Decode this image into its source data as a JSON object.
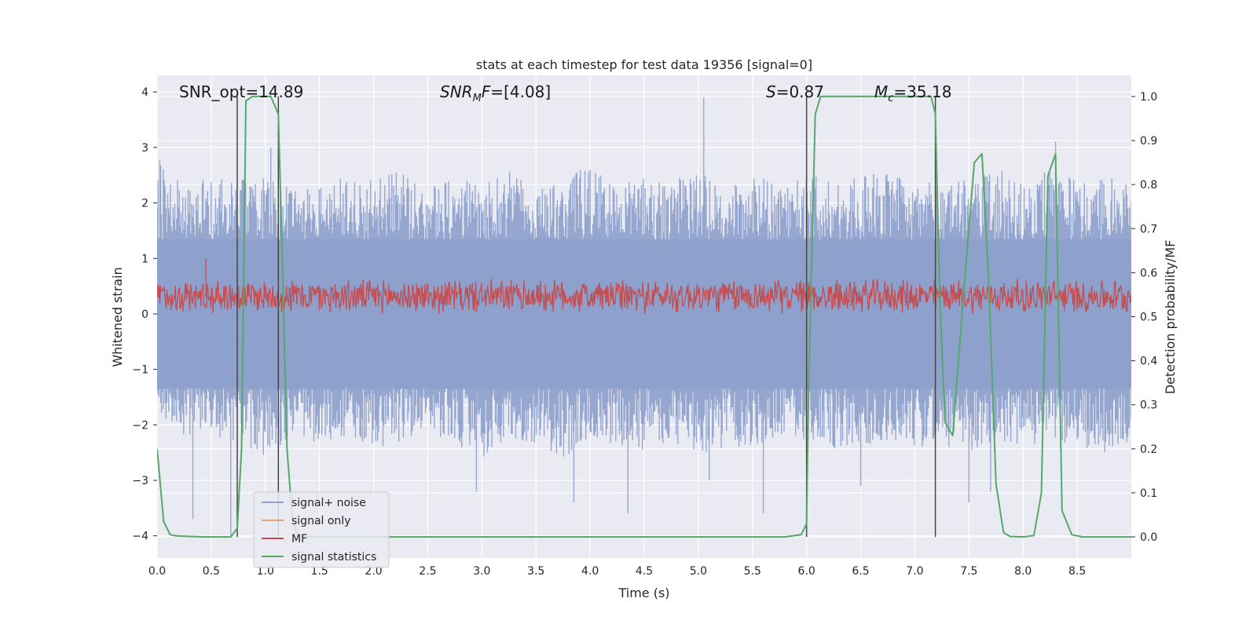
{
  "chart_data": {
    "type": "line",
    "title": "stats at each timestep for test data 19356 [signal=0]",
    "xlabel": "Time (s)",
    "ylabel": "Whitened strain",
    "y2label": "Detection probability/MF",
    "xlim": [
      0,
      9.0
    ],
    "ylim": [
      -4.4,
      4.3
    ],
    "y2lim": [
      -0.048,
      1.048
    ],
    "x_ticks": [
      "0.0",
      "0.5",
      "1.0",
      "1.5",
      "2.0",
      "2.5",
      "3.0",
      "3.5",
      "4.0",
      "4.5",
      "5.0",
      "5.5",
      "6.0",
      "6.5",
      "7.0",
      "7.5",
      "8.0",
      "8.5"
    ],
    "x_tick_values": [
      0,
      0.5,
      1,
      1.5,
      2,
      2.5,
      3,
      3.5,
      4,
      4.5,
      5,
      5.5,
      6,
      6.5,
      7,
      7.5,
      8,
      8.5
    ],
    "y_ticks": [
      "4",
      "3",
      "2",
      "1",
      "0",
      "−1",
      "−2",
      "−3",
      "−4"
    ],
    "y_tick_values": [
      4,
      3,
      2,
      1,
      0,
      -1,
      -2,
      -3,
      -4
    ],
    "y2_ticks": [
      "1.0",
      "0.9",
      "0.8",
      "0.7",
      "0.6",
      "0.5",
      "0.4",
      "0.3",
      "0.2",
      "0.1",
      "0.0"
    ],
    "y2_tick_values": [
      1.0,
      0.9,
      0.8,
      0.7,
      0.6,
      0.5,
      0.4,
      0.3,
      0.2,
      0.1,
      0.0
    ],
    "grid": true,
    "legend_position": "bottom-left",
    "annotations": {
      "snr_opt": "SNR_opt=14.89",
      "snr_mf": "[4.08]",
      "s_value": "=0.87",
      "mc_value": "=35.18"
    },
    "vertical_markers": [
      0.74,
      1.12,
      6.0,
      7.19
    ],
    "series": [
      {
        "name": "signal+ noise",
        "color": "#8da0cb",
        "note_axis": "left",
        "envelope": [
          [
            0.0,
            3.0,
            -1.8
          ],
          [
            0.25,
            2.3,
            -2.2
          ],
          [
            0.5,
            2.5,
            -2.1
          ],
          [
            0.75,
            2.4,
            -2.5
          ],
          [
            1.0,
            2.6,
            -2.6
          ],
          [
            1.25,
            2.2,
            -2.2
          ],
          [
            1.5,
            2.3,
            -2.4
          ],
          [
            1.75,
            2.5,
            -2.2
          ],
          [
            2.0,
            2.4,
            -2.5
          ],
          [
            2.25,
            2.6,
            -2.3
          ],
          [
            2.5,
            2.3,
            -2.1
          ],
          [
            2.75,
            2.5,
            -2.4
          ],
          [
            3.0,
            2.4,
            -2.6
          ],
          [
            3.25,
            2.6,
            -2.2
          ],
          [
            3.5,
            2.2,
            -2.4
          ],
          [
            3.75,
            2.5,
            -2.6
          ],
          [
            4.0,
            2.7,
            -2.3
          ],
          [
            4.25,
            2.3,
            -2.4
          ],
          [
            4.5,
            2.5,
            -2.5
          ],
          [
            4.75,
            2.4,
            -2.3
          ],
          [
            5.0,
            2.6,
            -2.6
          ],
          [
            5.25,
            2.3,
            -2.4
          ],
          [
            5.5,
            2.5,
            -2.4
          ],
          [
            5.75,
            2.4,
            -2.2
          ],
          [
            6.0,
            2.6,
            -2.3
          ],
          [
            6.25,
            2.4,
            -2.5
          ],
          [
            6.5,
            2.5,
            -2.4
          ],
          [
            6.75,
            2.6,
            -2.3
          ],
          [
            7.0,
            2.3,
            -2.4
          ],
          [
            7.25,
            2.5,
            -2.4
          ],
          [
            7.5,
            2.4,
            -2.5
          ],
          [
            7.75,
            2.6,
            -2.3
          ],
          [
            8.0,
            2.5,
            -2.4
          ],
          [
            8.25,
            2.6,
            -2.3
          ],
          [
            8.5,
            2.4,
            -2.4
          ],
          [
            8.75,
            2.5,
            -2.5
          ],
          [
            9.0,
            2.3,
            -2.3
          ]
        ],
        "spikes": [
          [
            5.05,
            3.9
          ],
          [
            1.05,
            3.0
          ],
          [
            8.3,
            3.1
          ],
          [
            0.68,
            -4.0
          ],
          [
            0.33,
            -3.7
          ],
          [
            7.5,
            -3.4
          ],
          [
            3.85,
            -3.4
          ],
          [
            4.35,
            -3.6
          ],
          [
            5.6,
            -3.6
          ],
          [
            5.1,
            -3.0
          ],
          [
            7.7,
            -3.2
          ],
          [
            2.95,
            -3.2
          ],
          [
            6.5,
            -3.1
          ]
        ]
      },
      {
        "name": "signal only",
        "color": "#e8a07a",
        "values": []
      },
      {
        "name": "MF",
        "color": "#c44e52",
        "note_axis": "left",
        "band_center": 0.32,
        "band_halfwidth": 0.33
      },
      {
        "name": "signal statistics",
        "color": "#55a868",
        "note_axis": "right",
        "x": [
          0.0,
          0.06,
          0.12,
          0.18,
          0.3,
          0.45,
          0.6,
          0.68,
          0.74,
          0.78,
          0.82,
          0.88,
          0.95,
          1.05,
          1.12,
          1.16,
          1.2,
          1.25,
          1.3,
          1.4,
          1.6,
          2.0,
          3.0,
          4.0,
          5.0,
          5.8,
          5.95,
          6.0,
          6.02,
          6.08,
          6.13,
          6.2,
          6.5,
          7.0,
          7.15,
          7.19,
          7.23,
          7.28,
          7.35,
          7.45,
          7.55,
          7.62,
          7.68,
          7.75,
          7.82,
          7.88,
          8.0,
          8.1,
          8.17,
          8.23,
          8.3,
          8.36,
          8.45,
          8.55,
          8.7,
          9.0
        ],
        "y": [
          0.2,
          0.035,
          0.005,
          0.002,
          0.001,
          0.0,
          0.0,
          0.0,
          0.02,
          0.2,
          0.99,
          1.0,
          1.0,
          1.0,
          0.96,
          0.6,
          0.2,
          0.04,
          0.002,
          0.0,
          0.0,
          0.0,
          0.0,
          0.0,
          0.0,
          0.0,
          0.005,
          0.03,
          0.35,
          0.96,
          1.0,
          1.0,
          1.0,
          1.0,
          1.0,
          0.96,
          0.55,
          0.26,
          0.23,
          0.55,
          0.85,
          0.87,
          0.6,
          0.12,
          0.01,
          0.001,
          0.0,
          0.003,
          0.1,
          0.82,
          0.87,
          0.06,
          0.005,
          0.0,
          0.0,
          0.0
        ]
      }
    ]
  }
}
